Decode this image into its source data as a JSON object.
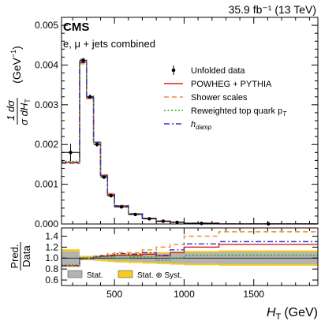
{
  "header": {
    "lumi_text": "35.9 fb⁻¹ (13 TeV)",
    "experiment": "CMS",
    "channel": "e, μ + jets combined"
  },
  "axes": {
    "xlabel_main": "H",
    "xlabel_sub": "T",
    "xlabel_unit": "(GeV)",
    "ylabel_num": "1  dσ",
    "ylabel_den": "σ dH",
    "ylabel_den_sub": "T",
    "ylabel_unit": "(GeV",
    "ylabel_unit_sup": "−1",
    "ylabel_close": ")",
    "ratio_ylabel_top": "Pred.",
    "ratio_ylabel_bottom": "Data"
  },
  "legend": {
    "entries": [
      {
        "label": "Unfolded data",
        "style": "marker",
        "color": "#000000"
      },
      {
        "label": "POWHEG + PYTHIA",
        "style": "solid",
        "color": "#d62718"
      },
      {
        "label": "Shower scales",
        "style": "dashed",
        "color": "#f08a2e"
      },
      {
        "label": "Reweighted top quark p",
        "sub": "T",
        "style": "dotted",
        "color": "#21b021"
      },
      {
        "label": "h",
        "sub": "damp",
        "style": "dashdot",
        "color": "#2a35d6"
      }
    ],
    "ratio_entries": [
      {
        "label": "Stat.",
        "color": "#b3b3b3"
      },
      {
        "label": "Stat. ⊕ Syst.",
        "color": "#f5cb1e"
      }
    ]
  },
  "chart_data": {
    "type": "line",
    "title": "",
    "xlabel": "H_T (GeV)",
    "ylabel": "1/σ dσ/dH_T (GeV^-1)",
    "xlim": [
      120,
      1960
    ],
    "ylim": [
      0,
      0.0052
    ],
    "x_ticks": [
      500,
      1000,
      1500
    ],
    "y_ticks": [
      0,
      0.001,
      0.002,
      0.003,
      0.004,
      0.005
    ],
    "y_tick_labels": [
      "0.000",
      "0.001",
      "0.002",
      "0.003",
      "0.004",
      "0.005"
    ],
    "bin_edges": [
      120,
      250,
      300,
      350,
      400,
      450,
      500,
      600,
      700,
      800,
      900,
      1000,
      1250,
      1960
    ],
    "data": {
      "values": [
        0.0018,
        0.00412,
        0.0032,
        0.002,
        0.00118,
        0.00071,
        0.00043,
        0.00024,
        0.00013,
        7e-05,
        4e-05,
        1.5e-05,
        3e-06
      ],
      "errors": [
        0.00022,
        6e-05,
        6e-05,
        5e-05,
        4e-05,
        3e-05,
        2e-05,
        1.5e-05,
        1e-05,
        1e-05,
        5e-06,
        4e-06,
        1e-06
      ]
    },
    "series": [
      {
        "name": "POWHEG + PYTHIA",
        "color": "#d62718",
        "dash": "solid",
        "values": [
          0.00155,
          0.00408,
          0.00318,
          0.00205,
          0.00122,
          0.00074,
          0.00045,
          0.00025,
          0.00014,
          7e-05,
          4.5e-05,
          1.8e-05,
          4e-06
        ]
      },
      {
        "name": "Shower scales",
        "color": "#f08a2e",
        "dash": "dashed",
        "values": [
          0.00152,
          0.00403,
          0.00315,
          0.00206,
          0.00124,
          0.00077,
          0.00047,
          0.00026,
          0.00015,
          8e-05,
          5e-05,
          2e-05,
          5e-06
        ]
      },
      {
        "name": "Reweighted top quark p_T",
        "color": "#21b021",
        "dash": "dotted",
        "values": [
          0.00158,
          0.00415,
          0.00322,
          0.00204,
          0.0012,
          0.00072,
          0.00043,
          0.00024,
          0.00013,
          6.5e-05,
          4e-05,
          1.6e-05,
          3e-06
        ]
      },
      {
        "name": "h_damp",
        "color": "#2a35d6",
        "dash": "dashdot",
        "values": [
          0.00154,
          0.00406,
          0.00317,
          0.00206,
          0.00123,
          0.00075,
          0.00046,
          0.00026,
          0.00014,
          7e-05,
          4.6e-05,
          1.9e-05,
          4e-06
        ]
      }
    ],
    "ratio": {
      "ylim": [
        0.5,
        1.55
      ],
      "y_ticks": [
        0.6,
        0.8,
        1.0,
        1.2,
        1.4
      ],
      "y_tick_labels": [
        "0.6",
        "0.8",
        "1.0",
        "1.2",
        "1.4"
      ],
      "stat_halfwidth": [
        0.12,
        0.015,
        0.02,
        0.025,
        0.03,
        0.04,
        0.05,
        0.06,
        0.07,
        0.08,
        0.09,
        0.1,
        0.11
      ],
      "syst_halfwidth": [
        0.16,
        0.04,
        0.04,
        0.05,
        0.06,
        0.07,
        0.08,
        0.09,
        0.1,
        0.11,
        0.12,
        0.13,
        0.14
      ],
      "series": [
        {
          "name": "POWHEG + PYTHIA",
          "values": [
            0.86,
            0.99,
            0.99,
            1.02,
            1.03,
            1.04,
            1.05,
            1.05,
            1.07,
            1.04,
            1.1,
            1.2,
            1.25
          ]
        },
        {
          "name": "Shower scales",
          "values": [
            0.85,
            0.98,
            0.99,
            1.03,
            1.05,
            1.08,
            1.1,
            1.1,
            1.15,
            1.2,
            1.25,
            1.4,
            1.48
          ]
        },
        {
          "name": "Reweighted top quark p_T",
          "values": [
            0.88,
            1.01,
            1.01,
            1.02,
            1.02,
            1.02,
            1.0,
            1.02,
            1.02,
            0.96,
            1.0,
            1.05,
            1.05
          ]
        },
        {
          "name": "h_damp",
          "values": [
            0.86,
            0.99,
            0.99,
            1.03,
            1.04,
            1.05,
            1.08,
            1.07,
            1.1,
            1.05,
            1.15,
            1.26,
            1.3
          ]
        }
      ]
    }
  }
}
